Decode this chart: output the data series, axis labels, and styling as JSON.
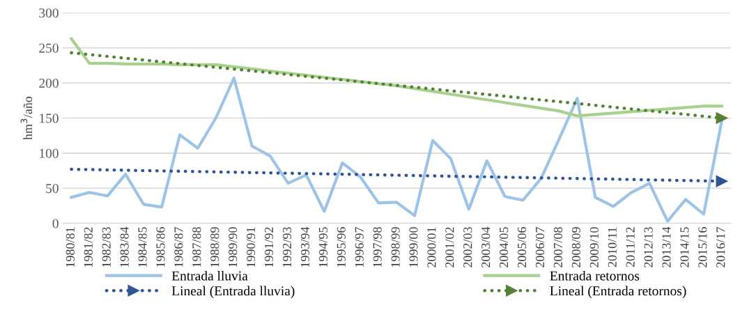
{
  "chart_data": {
    "type": "line",
    "ylabel": "hm$^{3}$/año",
    "categories": [
      "1980/81",
      "1981/82",
      "1982/83",
      "1983/84",
      "1984/85",
      "1985/86",
      "1986/87",
      "1987/88",
      "1988/89",
      "1989/90",
      "1990/91",
      "1991/92",
      "1992/93",
      "1993/94",
      "1994/95",
      "1995/96",
      "1996/97",
      "1997/98",
      "1998/99",
      "1999/00",
      "2000/01",
      "2001/02",
      "2002/03",
      "2003/04",
      "2004/05",
      "2005/06",
      "2006/07",
      "2007/08",
      "2008/09",
      "2009/10",
      "2010/11",
      "2011/12",
      "2012/13",
      "2013/14",
      "2014/15",
      "2015/16",
      "2016/17"
    ],
    "series": [
      {
        "name": "Entrada lluvia",
        "color": "#9dc3e6",
        "line_style": "solid",
        "values": [
          37,
          44,
          39,
          70,
          27,
          23,
          126,
          107,
          150,
          207,
          110,
          96,
          57,
          69,
          17,
          86,
          66,
          29,
          30,
          11,
          118,
          92,
          20,
          89,
          38,
          33,
          64,
          120,
          178,
          37,
          24,
          44,
          57,
          3,
          34,
          13,
          146
        ]
      },
      {
        "name": "Entrada retornos",
        "color": "#a9d18e",
        "line_style": "solid",
        "values": [
          263,
          228,
          228,
          227,
          227,
          227,
          226,
          226,
          226,
          223,
          220,
          217,
          214,
          211,
          208,
          205,
          202,
          199,
          196,
          192,
          188,
          184,
          180,
          176,
          172,
          168,
          164,
          160,
          153,
          155,
          157,
          159,
          161,
          163,
          165,
          167,
          167
        ]
      },
      {
        "name": "Lineal (Entrada lluvia)",
        "color": "#2f5597",
        "line_style": "dotted",
        "marker": "triangle",
        "x": [
          "1980/81",
          "2016/17"
        ],
        "values": [
          77,
          60
        ]
      },
      {
        "name": "Lineal (Entrada retornos)",
        "color": "#548235",
        "line_style": "dotted",
        "marker": "triangle",
        "x": [
          "1980/81",
          "2016/17"
        ],
        "values": [
          243,
          150
        ]
      }
    ],
    "ylim": [
      0,
      300
    ],
    "yticks": [
      0,
      50,
      100,
      150,
      200,
      250,
      300
    ],
    "grid": "y",
    "legend": "bottom"
  }
}
